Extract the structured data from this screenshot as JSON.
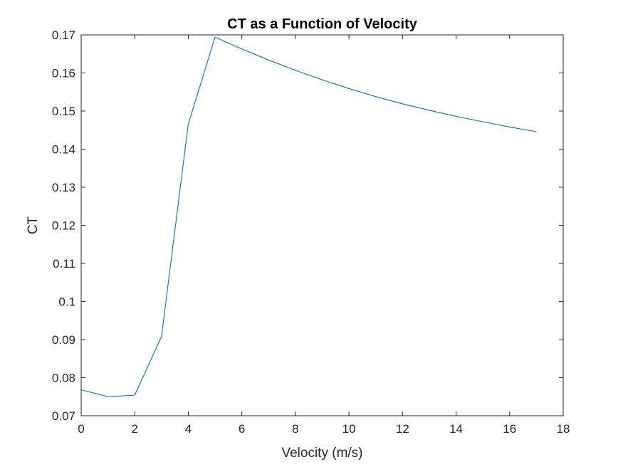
{
  "chart_data": {
    "type": "line",
    "title": "CT as a Function of Velocity",
    "xlabel": "Velocity (m/s)",
    "ylabel": "CT",
    "xlim": [
      0,
      18
    ],
    "ylim": [
      0.07,
      0.17
    ],
    "xticks": [
      0,
      2,
      4,
      6,
      8,
      10,
      12,
      14,
      16,
      18
    ],
    "yticks": [
      0.07,
      0.08,
      0.09,
      0.1,
      0.11,
      0.12,
      0.13,
      0.14,
      0.15,
      0.16,
      0.17
    ],
    "xtick_labels": [
      "0",
      "2",
      "4",
      "6",
      "8",
      "10",
      "12",
      "14",
      "16",
      "18"
    ],
    "ytick_labels": [
      "0.07",
      "0.08",
      "0.09",
      "0.1",
      "0.11",
      "0.12",
      "0.13",
      "0.14",
      "0.15",
      "0.16",
      "0.17"
    ],
    "grid": false,
    "series": [
      {
        "color": "#0072BD",
        "x": [
          0,
          1,
          2,
          3,
          4,
          5,
          6,
          7,
          8,
          9,
          10,
          11,
          12,
          13,
          14,
          15,
          16,
          17
        ],
        "y": [
          0.0768,
          0.075,
          0.0754,
          0.0908,
          0.1466,
          0.1694,
          0.1663,
          0.1634,
          0.1607,
          0.1582,
          0.1559,
          0.1538,
          0.1519,
          0.1502,
          0.1486,
          0.1472,
          0.1458,
          0.1446
        ]
      }
    ]
  }
}
